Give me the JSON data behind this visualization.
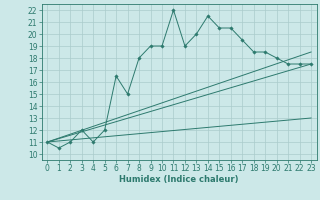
{
  "title": "",
  "xlabel": "Humidex (Indice chaleur)",
  "bg_color": "#cce8e8",
  "grid_color": "#aacccc",
  "line_color": "#2d7a6e",
  "xlim": [
    -0.5,
    23.5
  ],
  "ylim": [
    9.5,
    22.5
  ],
  "xticks": [
    0,
    1,
    2,
    3,
    4,
    5,
    6,
    7,
    8,
    9,
    10,
    11,
    12,
    13,
    14,
    15,
    16,
    17,
    18,
    19,
    20,
    21,
    22,
    23
  ],
  "yticks": [
    10,
    11,
    12,
    13,
    14,
    15,
    16,
    17,
    18,
    19,
    20,
    21,
    22
  ],
  "series1_x": [
    0,
    1,
    2,
    3,
    4,
    5,
    6,
    7,
    8,
    9,
    10,
    11,
    12,
    13,
    14,
    15,
    16,
    17,
    18,
    19,
    20,
    21,
    22,
    23
  ],
  "series1_y": [
    11.0,
    10.5,
    11.0,
    12.0,
    11.0,
    12.0,
    16.5,
    15.0,
    18.0,
    19.0,
    19.0,
    22.0,
    19.0,
    20.0,
    21.5,
    20.5,
    20.5,
    19.5,
    18.5,
    18.5,
    18.0,
    17.5,
    17.5,
    17.5
  ],
  "line1_x": [
    0,
    23
  ],
  "line1_y": [
    11.0,
    18.5
  ],
  "line2_x": [
    0,
    23
  ],
  "line2_y": [
    11.0,
    17.5
  ],
  "line3_x": [
    0,
    23
  ],
  "line3_y": [
    11.0,
    13.0
  ],
  "tick_fontsize": 5.5,
  "xlabel_fontsize": 6.0
}
